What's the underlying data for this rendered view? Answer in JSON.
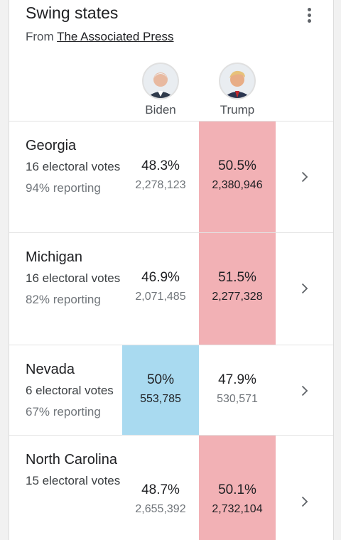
{
  "header": {
    "title": "Swing states",
    "subtitle_prefix": "From",
    "source": "The Associated Press"
  },
  "candidates": [
    {
      "name": "Biden",
      "photo_color": "#2f3a4b"
    },
    {
      "name": "Trump",
      "photo_color": "#2a3550"
    }
  ],
  "colors": {
    "republican_win": "#f2b1b5",
    "democrat_win": "#a9daf0"
  },
  "states": [
    {
      "name": "Georgia",
      "electoral": "16 electoral votes",
      "reporting": "94% reporting",
      "biden": {
        "pct": "48.3%",
        "votes": "2,278,123"
      },
      "trump": {
        "pct": "50.5%",
        "votes": "2,380,946"
      },
      "leader": "trump"
    },
    {
      "name": "Michigan",
      "electoral": "16 electoral votes",
      "reporting": "82% reporting",
      "biden": {
        "pct": "46.9%",
        "votes": "2,071,485"
      },
      "trump": {
        "pct": "51.5%",
        "votes": "2,277,328"
      },
      "leader": "trump"
    },
    {
      "name": "Nevada",
      "electoral": "6 electoral votes",
      "reporting": "67% reporting",
      "biden": {
        "pct": "50%",
        "votes": "553,785"
      },
      "trump": {
        "pct": "47.9%",
        "votes": "530,571"
      },
      "leader": "biden"
    },
    {
      "name": "North Carolina",
      "electoral": "15 electoral votes",
      "reporting": "",
      "biden": {
        "pct": "48.7%",
        "votes": "2,655,392"
      },
      "trump": {
        "pct": "50.1%",
        "votes": "2,732,104"
      },
      "leader": "trump"
    }
  ]
}
